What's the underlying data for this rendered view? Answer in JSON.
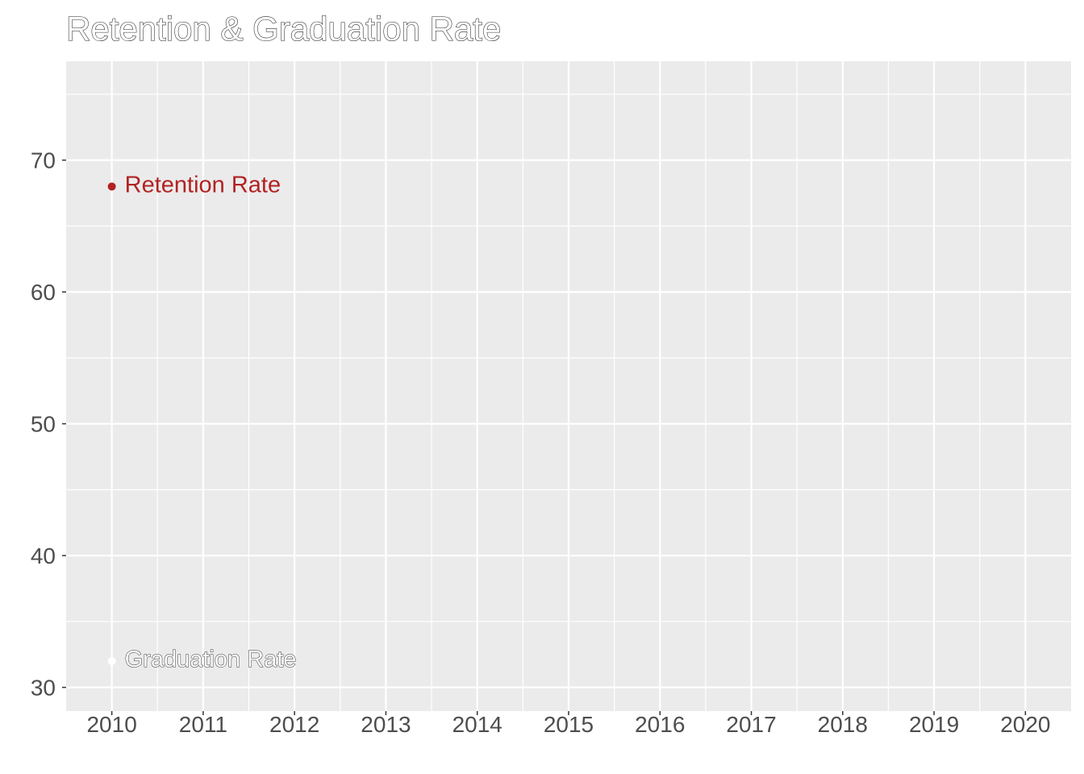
{
  "chart_data": {
    "type": "scatter",
    "title": "Retention & Graduation Rate",
    "xlabel": "",
    "ylabel": "",
    "x_ticks": [
      "2010",
      "2011",
      "2012",
      "2013",
      "2014",
      "2015",
      "2016",
      "2017",
      "2018",
      "2019",
      "2020"
    ],
    "y_ticks": [
      "30",
      "40",
      "50",
      "60",
      "70"
    ],
    "xlim": [
      2009.5,
      2020.5
    ],
    "ylim": [
      28.2,
      77.5
    ],
    "grid": true,
    "legend": "direct labels",
    "series": [
      {
        "name": "Retention Rate",
        "color": "#b22222",
        "points": [
          {
            "x": 2010,
            "y": 68
          }
        ]
      },
      {
        "name": "Graduation Rate",
        "color": "#ffffff",
        "points": [
          {
            "x": 2010,
            "y": 32
          }
        ]
      }
    ]
  },
  "colors": {
    "panel": "#ebebeb",
    "grid": "#ffffff",
    "tick_text": "#4d4d4d"
  }
}
